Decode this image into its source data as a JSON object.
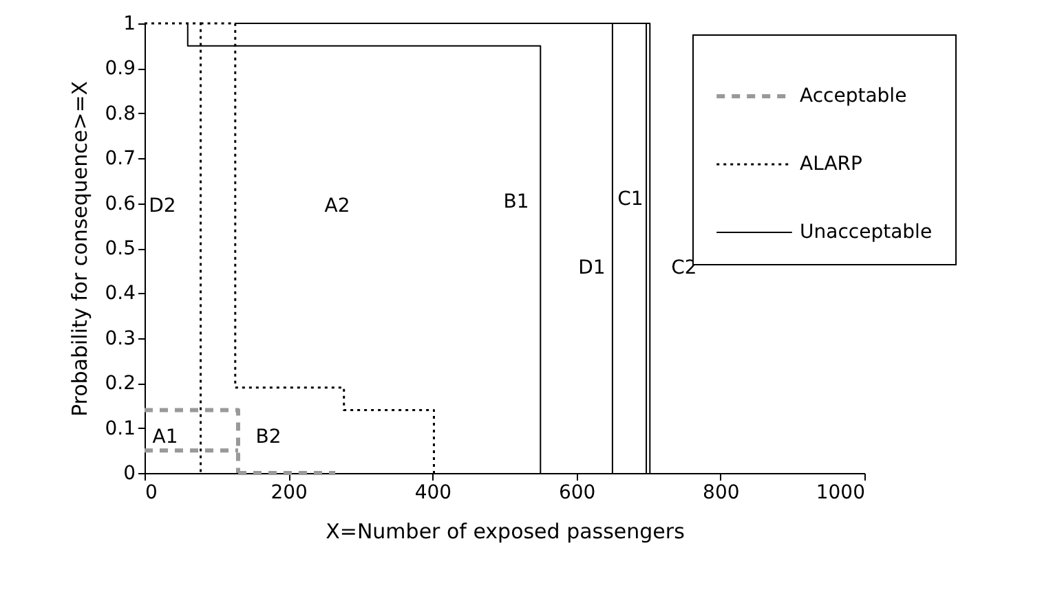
{
  "chart_data": {
    "type": "line",
    "xlabel": "X=Number of exposed passengers",
    "ylabel": "Probability for consequence>=X",
    "xlim": [
      0,
      1000
    ],
    "xticks": [
      0,
      200,
      400,
      600,
      800,
      1000
    ],
    "ylim": [
      0,
      1
    ],
    "yticks": [
      0,
      0.1,
      0.2,
      0.3,
      0.4,
      0.5,
      0.6,
      0.7,
      0.8,
      0.9,
      1
    ],
    "grid": false,
    "legend": "top right",
    "marker": "none",
    "series": [
      {
        "name": "Acceptable",
        "color": "#999999",
        "line_style": "dashed",
        "x": [
          0,
          130,
          130
        ],
        "values": [
          0.14,
          0.14,
          0
        ]
      },
      {
        "color": "#999999",
        "line_style": "dashed",
        "x": [
          0,
          130
        ],
        "values": [
          0.05,
          0.05
        ]
      },
      {
        "color": "#999999",
        "line_style": "dashed",
        "x": [
          130,
          265
        ],
        "values": [
          0,
          0
        ]
      },
      {
        "name": "ALARP",
        "color": "#000000",
        "line_style": "dotted",
        "x": [
          0,
          78,
          78
        ],
        "values": [
          1,
          1,
          0
        ]
      },
      {
        "color": "#000000",
        "line_style": "dotted",
        "x": [
          78,
          126,
          126,
          277,
          277,
          402,
          402
        ],
        "values": [
          1,
          1,
          0.19,
          0.19,
          0.14,
          0.14,
          0
        ]
      },
      {
        "name": "Unacceptable",
        "color": "#000000",
        "line_style": "solid",
        "x": [
          60,
          60,
          550,
          550
        ],
        "values": [
          1,
          0.95,
          0.95,
          0
        ]
      },
      {
        "color": "#000000",
        "line_style": "solid",
        "x": [
          126,
          650,
          650
        ],
        "values": [
          1,
          1,
          0
        ]
      },
      {
        "color": "#000000",
        "line_style": "solid",
        "x": [
          650,
          697,
          697
        ],
        "values": [
          1,
          1,
          0
        ]
      },
      {
        "color": "#000000",
        "line_style": "solid",
        "x": [
          697,
          702,
          702
        ],
        "values": [
          1,
          1,
          0
        ]
      }
    ],
    "annotations": [
      "D2",
      "A2",
      "B1",
      "C1",
      "D1",
      "C2",
      "A1",
      "B2"
    ]
  }
}
